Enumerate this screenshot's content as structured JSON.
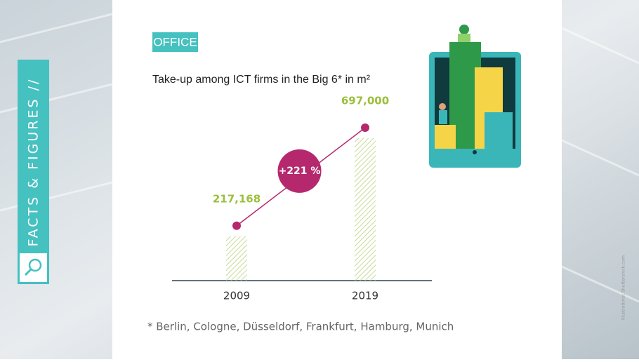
{
  "chart_data": {
    "type": "bar",
    "section": "OFFICE",
    "sidebar": "// FACTS & FIGURES //",
    "title": "Take-up among ICT firms in the Big 6* in m²",
    "categories": [
      "2009",
      "2019"
    ],
    "values": [
      217168,
      697000
    ],
    "value_labels": [
      "217,168",
      "697,000"
    ],
    "color": "#b8d27a",
    "label_color": "#9cbf3a",
    "marker_color": "#b5286e",
    "annotation": "+221 %",
    "footnote": "* Berlin, Cologne, Düsseldorf, Frankfurt, Hamburg, Munich",
    "credit": "Illustrations: Shutterstock.com"
  }
}
